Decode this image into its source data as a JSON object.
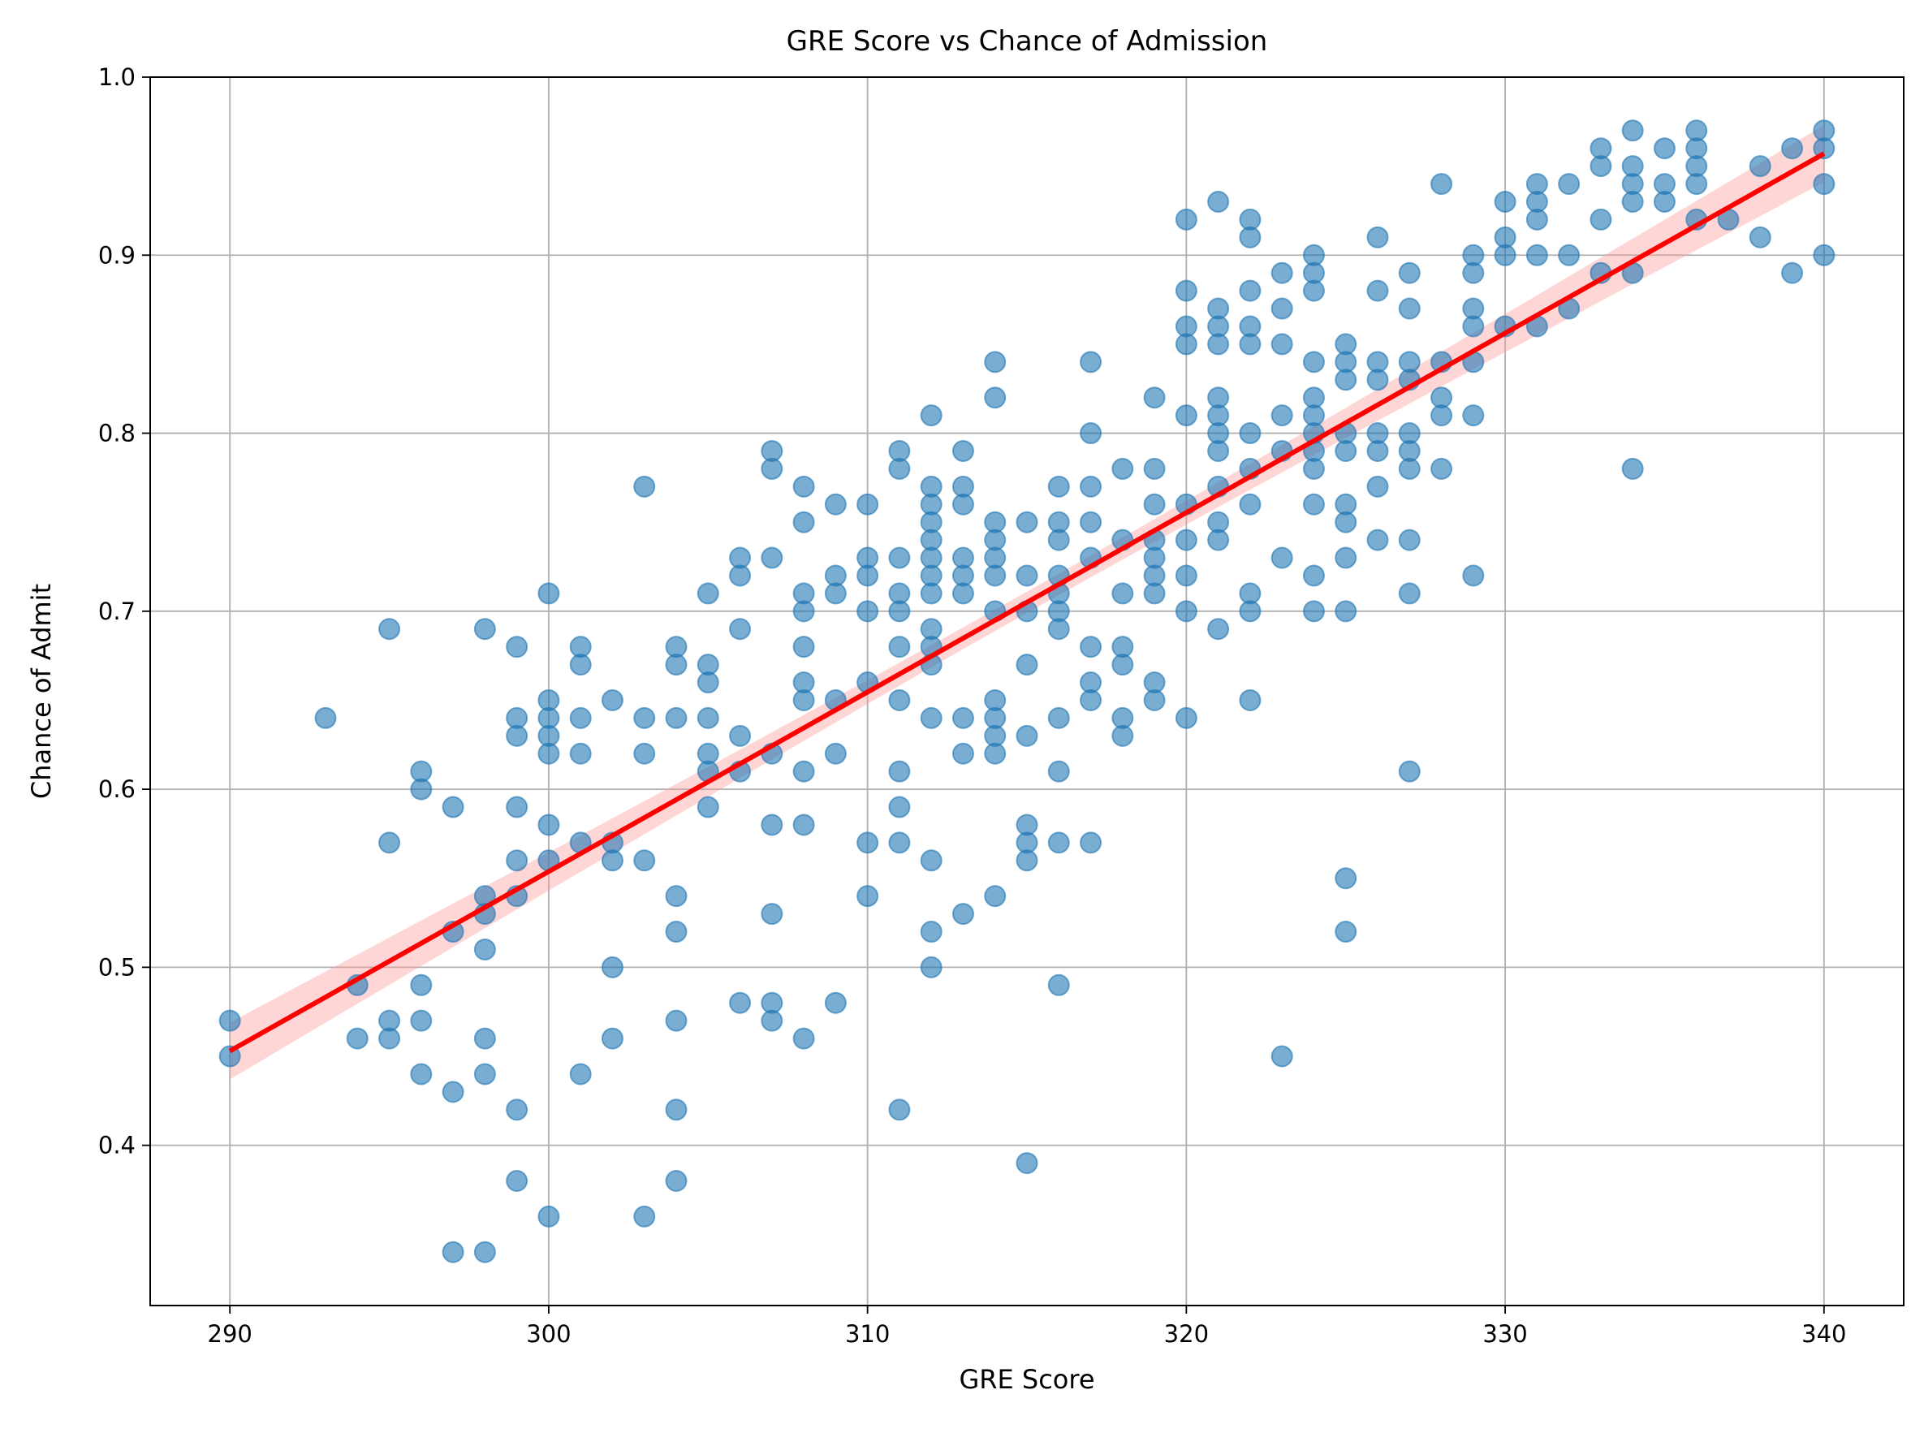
{
  "chart_data": {
    "type": "scatter",
    "title": "GRE Score vs Chance of Admission",
    "xlabel": "GRE Score",
    "ylabel": "Chance of Admit",
    "xlim": [
      287.5,
      342.5
    ],
    "ylim": [
      0.31,
      1.0
    ],
    "xticks": [
      290,
      300,
      310,
      320,
      330,
      340
    ],
    "yticks": [
      0.4,
      0.5,
      0.6,
      0.7,
      0.8,
      0.9,
      1.0
    ],
    "grid": true,
    "colors": {
      "points": "#1f77b4",
      "regression": "#ff0000",
      "band": "#ff9999"
    },
    "regression": {
      "x": [
        290,
        340
      ],
      "y": [
        0.453,
        0.957
      ],
      "ci_halfwidth_ends": 0.016,
      "ci_halfwidth_mid": 0.006
    },
    "points": [
      [
        290,
        0.47
      ],
      [
        290,
        0.45
      ],
      [
        293,
        0.64
      ],
      [
        294,
        0.49
      ],
      [
        294,
        0.46
      ],
      [
        295,
        0.69
      ],
      [
        295,
        0.57
      ],
      [
        295,
        0.47
      ],
      [
        295,
        0.46
      ],
      [
        296,
        0.61
      ],
      [
        296,
        0.6
      ],
      [
        296,
        0.49
      ],
      [
        296,
        0.47
      ],
      [
        296,
        0.44
      ],
      [
        297,
        0.59
      ],
      [
        297,
        0.52
      ],
      [
        297,
        0.43
      ],
      [
        297,
        0.34
      ],
      [
        298,
        0.69
      ],
      [
        298,
        0.54
      ],
      [
        298,
        0.53
      ],
      [
        298,
        0.51
      ],
      [
        298,
        0.46
      ],
      [
        298,
        0.44
      ],
      [
        298,
        0.34
      ],
      [
        299,
        0.68
      ],
      [
        299,
        0.64
      ],
      [
        299,
        0.63
      ],
      [
        299,
        0.59
      ],
      [
        299,
        0.56
      ],
      [
        299,
        0.54
      ],
      [
        299,
        0.42
      ],
      [
        299,
        0.38
      ],
      [
        300,
        0.71
      ],
      [
        300,
        0.65
      ],
      [
        300,
        0.64
      ],
      [
        300,
        0.63
      ],
      [
        300,
        0.62
      ],
      [
        300,
        0.58
      ],
      [
        300,
        0.56
      ],
      [
        300,
        0.36
      ],
      [
        301,
        0.68
      ],
      [
        301,
        0.67
      ],
      [
        301,
        0.64
      ],
      [
        301,
        0.62
      ],
      [
        301,
        0.57
      ],
      [
        301,
        0.44
      ],
      [
        302,
        0.65
      ],
      [
        302,
        0.57
      ],
      [
        302,
        0.56
      ],
      [
        302,
        0.5
      ],
      [
        302,
        0.46
      ],
      [
        303,
        0.77
      ],
      [
        303,
        0.64
      ],
      [
        303,
        0.62
      ],
      [
        303,
        0.56
      ],
      [
        303,
        0.36
      ],
      [
        304,
        0.68
      ],
      [
        304,
        0.67
      ],
      [
        304,
        0.64
      ],
      [
        304,
        0.54
      ],
      [
        304,
        0.52
      ],
      [
        304,
        0.47
      ],
      [
        304,
        0.42
      ],
      [
        304,
        0.38
      ],
      [
        305,
        0.71
      ],
      [
        305,
        0.67
      ],
      [
        305,
        0.66
      ],
      [
        305,
        0.64
      ],
      [
        305,
        0.62
      ],
      [
        305,
        0.61
      ],
      [
        305,
        0.59
      ],
      [
        306,
        0.73
      ],
      [
        306,
        0.72
      ],
      [
        306,
        0.69
      ],
      [
        306,
        0.63
      ],
      [
        306,
        0.61
      ],
      [
        306,
        0.48
      ],
      [
        307,
        0.79
      ],
      [
        307,
        0.78
      ],
      [
        307,
        0.73
      ],
      [
        307,
        0.62
      ],
      [
        307,
        0.58
      ],
      [
        307,
        0.53
      ],
      [
        307,
        0.48
      ],
      [
        307,
        0.47
      ],
      [
        308,
        0.77
      ],
      [
        308,
        0.75
      ],
      [
        308,
        0.71
      ],
      [
        308,
        0.7
      ],
      [
        308,
        0.68
      ],
      [
        308,
        0.66
      ],
      [
        308,
        0.65
      ],
      [
        308,
        0.61
      ],
      [
        308,
        0.58
      ],
      [
        308,
        0.46
      ],
      [
        309,
        0.76
      ],
      [
        309,
        0.72
      ],
      [
        309,
        0.71
      ],
      [
        309,
        0.65
      ],
      [
        309,
        0.62
      ],
      [
        309,
        0.48
      ],
      [
        310,
        0.76
      ],
      [
        310,
        0.73
      ],
      [
        310,
        0.72
      ],
      [
        310,
        0.7
      ],
      [
        310,
        0.66
      ],
      [
        310,
        0.57
      ],
      [
        310,
        0.54
      ],
      [
        311,
        0.79
      ],
      [
        311,
        0.78
      ],
      [
        311,
        0.73
      ],
      [
        311,
        0.71
      ],
      [
        311,
        0.7
      ],
      [
        311,
        0.68
      ],
      [
        311,
        0.65
      ],
      [
        311,
        0.61
      ],
      [
        311,
        0.59
      ],
      [
        311,
        0.57
      ],
      [
        311,
        0.42
      ],
      [
        312,
        0.81
      ],
      [
        312,
        0.77
      ],
      [
        312,
        0.76
      ],
      [
        312,
        0.75
      ],
      [
        312,
        0.74
      ],
      [
        312,
        0.73
      ],
      [
        312,
        0.72
      ],
      [
        312,
        0.71
      ],
      [
        312,
        0.69
      ],
      [
        312,
        0.68
      ],
      [
        312,
        0.67
      ],
      [
        312,
        0.64
      ],
      [
        312,
        0.56
      ],
      [
        312,
        0.52
      ],
      [
        312,
        0.5
      ],
      [
        313,
        0.79
      ],
      [
        313,
        0.77
      ],
      [
        313,
        0.76
      ],
      [
        313,
        0.73
      ],
      [
        313,
        0.72
      ],
      [
        313,
        0.71
      ],
      [
        313,
        0.64
      ],
      [
        313,
        0.62
      ],
      [
        313,
        0.53
      ],
      [
        314,
        0.84
      ],
      [
        314,
        0.82
      ],
      [
        314,
        0.75
      ],
      [
        314,
        0.74
      ],
      [
        314,
        0.73
      ],
      [
        314,
        0.72
      ],
      [
        314,
        0.7
      ],
      [
        314,
        0.65
      ],
      [
        314,
        0.64
      ],
      [
        314,
        0.63
      ],
      [
        314,
        0.62
      ],
      [
        314,
        0.54
      ],
      [
        315,
        0.75
      ],
      [
        315,
        0.72
      ],
      [
        315,
        0.7
      ],
      [
        315,
        0.67
      ],
      [
        315,
        0.63
      ],
      [
        315,
        0.58
      ],
      [
        315,
        0.57
      ],
      [
        315,
        0.56
      ],
      [
        315,
        0.39
      ],
      [
        316,
        0.77
      ],
      [
        316,
        0.75
      ],
      [
        316,
        0.74
      ],
      [
        316,
        0.72
      ],
      [
        316,
        0.71
      ],
      [
        316,
        0.7
      ],
      [
        316,
        0.69
      ],
      [
        316,
        0.64
      ],
      [
        316,
        0.61
      ],
      [
        316,
        0.57
      ],
      [
        316,
        0.49
      ],
      [
        317,
        0.84
      ],
      [
        317,
        0.8
      ],
      [
        317,
        0.77
      ],
      [
        317,
        0.75
      ],
      [
        317,
        0.73
      ],
      [
        317,
        0.68
      ],
      [
        317,
        0.66
      ],
      [
        317,
        0.65
      ],
      [
        317,
        0.57
      ],
      [
        318,
        0.78
      ],
      [
        318,
        0.74
      ],
      [
        318,
        0.71
      ],
      [
        318,
        0.68
      ],
      [
        318,
        0.67
      ],
      [
        318,
        0.64
      ],
      [
        318,
        0.63
      ],
      [
        319,
        0.82
      ],
      [
        319,
        0.78
      ],
      [
        319,
        0.76
      ],
      [
        319,
        0.74
      ],
      [
        319,
        0.73
      ],
      [
        319,
        0.72
      ],
      [
        319,
        0.71
      ],
      [
        319,
        0.66
      ],
      [
        319,
        0.65
      ],
      [
        320,
        0.92
      ],
      [
        320,
        0.88
      ],
      [
        320,
        0.86
      ],
      [
        320,
        0.85
      ],
      [
        320,
        0.81
      ],
      [
        320,
        0.76
      ],
      [
        320,
        0.74
      ],
      [
        320,
        0.72
      ],
      [
        320,
        0.7
      ],
      [
        320,
        0.64
      ],
      [
        321,
        0.93
      ],
      [
        321,
        0.87
      ],
      [
        321,
        0.86
      ],
      [
        321,
        0.85
      ],
      [
        321,
        0.82
      ],
      [
        321,
        0.81
      ],
      [
        321,
        0.8
      ],
      [
        321,
        0.79
      ],
      [
        321,
        0.77
      ],
      [
        321,
        0.75
      ],
      [
        321,
        0.74
      ],
      [
        321,
        0.69
      ],
      [
        322,
        0.92
      ],
      [
        322,
        0.91
      ],
      [
        322,
        0.88
      ],
      [
        322,
        0.86
      ],
      [
        322,
        0.85
      ],
      [
        322,
        0.8
      ],
      [
        322,
        0.78
      ],
      [
        322,
        0.76
      ],
      [
        322,
        0.71
      ],
      [
        322,
        0.7
      ],
      [
        322,
        0.65
      ],
      [
        323,
        0.89
      ],
      [
        323,
        0.87
      ],
      [
        323,
        0.85
      ],
      [
        323,
        0.81
      ],
      [
        323,
        0.79
      ],
      [
        323,
        0.73
      ],
      [
        323,
        0.45
      ],
      [
        324,
        0.9
      ],
      [
        324,
        0.89
      ],
      [
        324,
        0.88
      ],
      [
        324,
        0.84
      ],
      [
        324,
        0.82
      ],
      [
        324,
        0.81
      ],
      [
        324,
        0.8
      ],
      [
        324,
        0.79
      ],
      [
        324,
        0.78
      ],
      [
        324,
        0.76
      ],
      [
        324,
        0.72
      ],
      [
        324,
        0.7
      ],
      [
        325,
        0.85
      ],
      [
        325,
        0.84
      ],
      [
        325,
        0.83
      ],
      [
        325,
        0.8
      ],
      [
        325,
        0.79
      ],
      [
        325,
        0.76
      ],
      [
        325,
        0.75
      ],
      [
        325,
        0.73
      ],
      [
        325,
        0.7
      ],
      [
        325,
        0.55
      ],
      [
        325,
        0.52
      ],
      [
        326,
        0.91
      ],
      [
        326,
        0.88
      ],
      [
        326,
        0.84
      ],
      [
        326,
        0.83
      ],
      [
        326,
        0.8
      ],
      [
        326,
        0.79
      ],
      [
        326,
        0.77
      ],
      [
        326,
        0.74
      ],
      [
        327,
        0.89
      ],
      [
        327,
        0.87
      ],
      [
        327,
        0.84
      ],
      [
        327,
        0.83
      ],
      [
        327,
        0.8
      ],
      [
        327,
        0.79
      ],
      [
        327,
        0.78
      ],
      [
        327,
        0.74
      ],
      [
        327,
        0.71
      ],
      [
        327,
        0.61
      ],
      [
        328,
        0.94
      ],
      [
        328,
        0.84
      ],
      [
        328,
        0.82
      ],
      [
        328,
        0.81
      ],
      [
        328,
        0.78
      ],
      [
        329,
        0.9
      ],
      [
        329,
        0.89
      ],
      [
        329,
        0.87
      ],
      [
        329,
        0.86
      ],
      [
        329,
        0.84
      ],
      [
        329,
        0.81
      ],
      [
        329,
        0.72
      ],
      [
        330,
        0.93
      ],
      [
        330,
        0.91
      ],
      [
        330,
        0.9
      ],
      [
        330,
        0.86
      ],
      [
        331,
        0.94
      ],
      [
        331,
        0.93
      ],
      [
        331,
        0.92
      ],
      [
        331,
        0.9
      ],
      [
        331,
        0.86
      ],
      [
        332,
        0.94
      ],
      [
        332,
        0.9
      ],
      [
        332,
        0.87
      ],
      [
        333,
        0.96
      ],
      [
        333,
        0.95
      ],
      [
        333,
        0.92
      ],
      [
        333,
        0.89
      ],
      [
        334,
        0.97
      ],
      [
        334,
        0.95
      ],
      [
        334,
        0.94
      ],
      [
        334,
        0.93
      ],
      [
        334,
        0.89
      ],
      [
        334,
        0.78
      ],
      [
        335,
        0.96
      ],
      [
        335,
        0.94
      ],
      [
        335,
        0.93
      ],
      [
        336,
        0.97
      ],
      [
        336,
        0.96
      ],
      [
        336,
        0.95
      ],
      [
        336,
        0.94
      ],
      [
        336,
        0.92
      ],
      [
        337,
        0.92
      ],
      [
        338,
        0.95
      ],
      [
        338,
        0.91
      ],
      [
        339,
        0.96
      ],
      [
        339,
        0.89
      ],
      [
        340,
        0.97
      ],
      [
        340,
        0.96
      ],
      [
        340,
        0.94
      ],
      [
        340,
        0.9
      ]
    ]
  }
}
